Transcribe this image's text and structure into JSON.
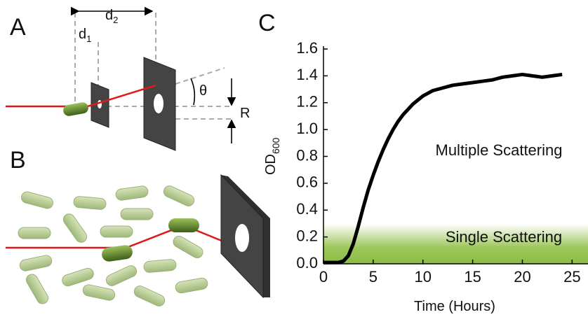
{
  "panel_labels": [
    "A",
    "B",
    "C"
  ],
  "diagram_a": {
    "d1": {
      "base": "d",
      "sub": "1"
    },
    "d2": {
      "base": "d",
      "sub": "2"
    },
    "theta": "θ",
    "r": "R"
  },
  "chart_data": {
    "type": "line",
    "x": [
      0,
      0.5,
      1,
      1.5,
      2,
      2.5,
      3,
      3.5,
      4,
      4.5,
      5,
      5.5,
      6,
      6.5,
      7,
      7.5,
      8,
      8.5,
      9,
      9.5,
      10,
      11,
      12,
      13,
      14,
      15,
      16,
      17,
      18,
      19,
      20,
      21,
      22,
      23,
      24
    ],
    "series": [
      {
        "color": "#000000",
        "values": [
          0.01,
          0.01,
          0.01,
          0.01,
          0.02,
          0.06,
          0.15,
          0.28,
          0.42,
          0.55,
          0.66,
          0.76,
          0.85,
          0.93,
          1.0,
          1.06,
          1.11,
          1.15,
          1.19,
          1.22,
          1.25,
          1.29,
          1.31,
          1.33,
          1.34,
          1.35,
          1.36,
          1.37,
          1.39,
          1.4,
          1.41,
          1.4,
          1.39,
          1.4,
          1.41
        ]
      }
    ],
    "xlim": [
      0,
      26.6
    ],
    "ylim": [
      0,
      1.6
    ],
    "xticks": [
      0,
      5,
      10,
      15,
      20,
      25
    ],
    "yticks": [
      {
        "value": 0,
        "label": "0.0"
      },
      0.2,
      0.4,
      0.6,
      0.8,
      {
        "value": 1,
        "label": "1.0"
      },
      1.2,
      1.4,
      1.6
    ],
    "xlabel": "Time (Hours)",
    "ylabel": {
      "base": "OD",
      "sub": "600"
    },
    "annotations": [
      "Multiple Scattering",
      "Single Scattering"
    ],
    "grid": false
  }
}
